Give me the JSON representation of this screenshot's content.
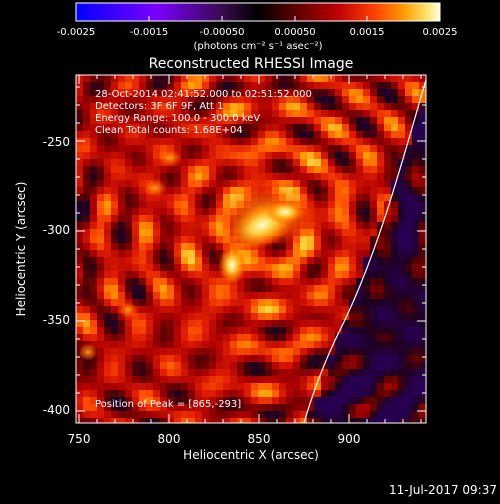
{
  "colorbar": {
    "tick_labels": [
      "-0.0025",
      "-0.0015",
      "-0.00050",
      "0.00050",
      "0.0015",
      "0.0025"
    ],
    "units_label": "(photons cm⁻² s⁻¹ asec⁻²)",
    "range": [
      -0.0025,
      0.0025
    ]
  },
  "plot": {
    "title": "Reconstructed RHESSI Image",
    "xlabel": "Heliocentric X (arcsec)",
    "ylabel": "Heliocentric Y (arcsec)",
    "x_tick_labels": [
      "750",
      "800",
      "850",
      "900"
    ],
    "y_tick_labels": [
      "-250",
      "-300",
      "-350",
      "-400"
    ],
    "x_range": [
      746,
      940
    ],
    "y_range": [
      -405,
      -218
    ],
    "info_lines": [
      "28-Oct-2014 02:41:52.000 to 02:51:52.000",
      "Detectors: 3F 6F 9F, Att 1",
      "Energy Range: 100.0 - 300.0 keV",
      "Clean     Total counts: 1.68E+04"
    ],
    "peak_text": "Position of Peak = [865,-293]"
  },
  "footer": {
    "timestamp": "11-Jul-2017 09:37"
  },
  "colors": {
    "background": "#000000",
    "text": "#ffffff",
    "limb_line": "#ffffff",
    "colormap": [
      "#0000ff",
      "#5a00ff",
      "#9b30ff",
      "#3a0840",
      "#000000",
      "#5a0000",
      "#b00000",
      "#ff2000",
      "#ff7a00",
      "#ffc000",
      "#fff0a0",
      "#ffffff"
    ]
  }
}
